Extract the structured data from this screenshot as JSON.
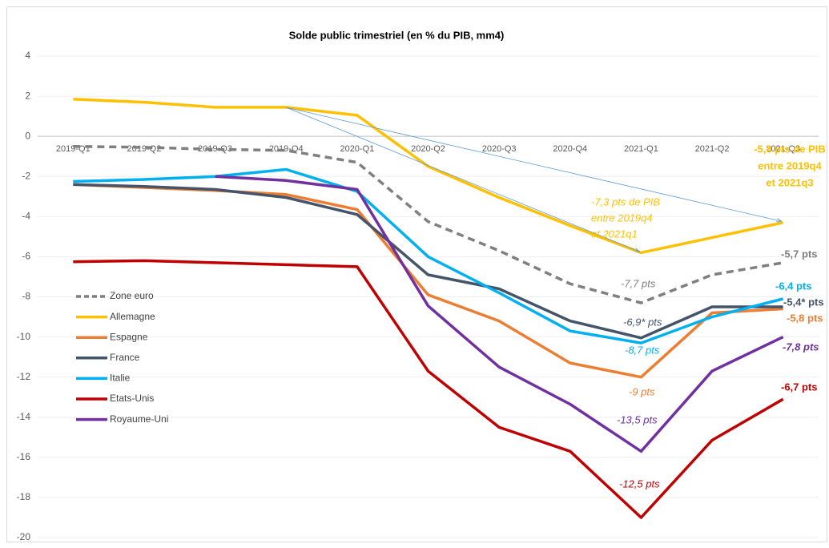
{
  "chart_data": {
    "type": "line",
    "title": "Solde public trimestriel (en % du PIB, mm4)",
    "categories": [
      "2019-Q1",
      "2019-Q2",
      "2019-Q3",
      "2019-Q4",
      "2020-Q1",
      "2020-Q2",
      "2020-Q3",
      "2020-Q4",
      "2021-Q1",
      "2021-Q2",
      "2021-Q3"
    ],
    "ylim": [
      -20,
      4
    ],
    "yticks": [
      -20,
      -18,
      -16,
      -14,
      -12,
      -10,
      -8,
      -6,
      -4,
      -2,
      0,
      2,
      4
    ],
    "grid": true,
    "legend": "left",
    "series": [
      {
        "name": "Zone euro",
        "color": "#7f7f7f",
        "dashed": true,
        "values": [
          -0.5,
          -0.55,
          -0.65,
          -0.7,
          -1.3,
          -4.25,
          -5.7,
          -7.35,
          -8.3,
          -6.9,
          -6.3
        ]
      },
      {
        "name": "Allemagne",
        "color": "#ffc000",
        "values": [
          1.85,
          1.7,
          1.45,
          1.45,
          1.05,
          -1.5,
          -3.05,
          -4.45,
          -5.8,
          -5.05,
          -4.3
        ]
      },
      {
        "name": "Espagne",
        "color": "#ed7d31",
        "values": [
          -2.4,
          -2.55,
          -2.7,
          -2.9,
          -3.65,
          -7.9,
          -9.2,
          -11.3,
          -12,
          -8.8,
          -8.6
        ]
      },
      {
        "name": "France",
        "color": "#44546a",
        "values": [
          -2.4,
          -2.5,
          -2.65,
          -3.05,
          -3.9,
          -6.9,
          -7.6,
          -9.2,
          -10.05,
          -8.5,
          -8.5
        ]
      },
      {
        "name": "Italie",
        "color": "#00b0f0",
        "values": [
          -2.25,
          -2.15,
          -2.0,
          -1.65,
          -2.75,
          -6.0,
          -7.8,
          -9.7,
          -10.3,
          -9.0,
          -8.1
        ]
      },
      {
        "name": "Etats-Unis",
        "color": "#c00000",
        "values": [
          -6.25,
          -6.2,
          -6.3,
          -6.4,
          -6.5,
          -11.7,
          -14.5,
          -15.7,
          -19.0,
          -15.15,
          -13.1
        ]
      },
      {
        "name": "Royaume-Uni",
        "color": "#7030a0",
        "values": [
          null,
          null,
          -2.0,
          -2.2,
          -2.65,
          -8.45,
          -11.5,
          -13.35,
          -15.7,
          -11.7,
          -10.0
        ]
      }
    ],
    "annotations": [
      {
        "lines": [
          "-5,8 pts de PIB",
          "entre 2019q4",
          "et 2021q3"
        ],
        "color": "#ffc000"
      },
      {
        "lines": [
          "-7,3 pts de PIB",
          "entre 2019q4",
          "et 2021q1"
        ],
        "color": "#ffc000"
      },
      {
        "lines": [
          "-5,7 pts"
        ],
        "color": "#7f7f7f"
      },
      {
        "lines": [
          "-7,7 pts"
        ],
        "color": "#7f7f7f"
      },
      {
        "lines": [
          "-6,4 pts"
        ],
        "color": "#00b0f0"
      },
      {
        "lines": [
          "-5,4* pts"
        ],
        "color": "#44546a"
      },
      {
        "lines": [
          "-6,9* pts"
        ],
        "color": "#44546a"
      },
      {
        "lines": [
          "-5,8 pts"
        ],
        "color": "#ed7d31"
      },
      {
        "lines": [
          "-8,7 pts"
        ],
        "color": "#00b0f0"
      },
      {
        "lines": [
          "-7,8 pts"
        ],
        "color": "#7030a0"
      },
      {
        "lines": [
          "-9 pts"
        ],
        "color": "#ed7d31"
      },
      {
        "lines": [
          "-6,7 pts"
        ],
        "color": "#c00000"
      },
      {
        "lines": [
          "-13,5 pts"
        ],
        "color": "#7030a0"
      },
      {
        "lines": [
          "-12,5 pts"
        ],
        "color": "#c00000"
      }
    ]
  }
}
